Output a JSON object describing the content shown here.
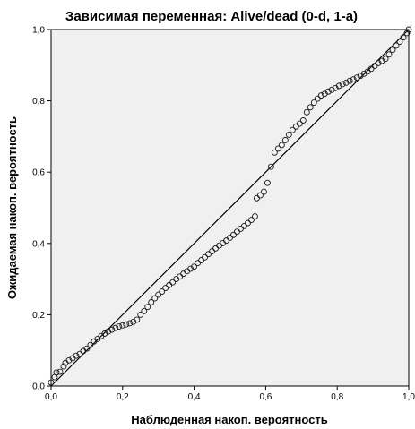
{
  "chart_data": {
    "type": "scatter",
    "title": "Зависимая переменная: Alive/dead (0-d, 1-a)",
    "xlabel": "Наблюденная накоп. вероятность",
    "ylabel": "Ожидаемая накоп. вероятность",
    "xlim": [
      0,
      1
    ],
    "ylim": [
      0,
      1
    ],
    "x_ticks": [
      "0,0",
      "0,2",
      "0,4",
      "0,6",
      "0,8",
      "1,0"
    ],
    "y_ticks": [
      "0,0",
      "0,2",
      "0,4",
      "0,6",
      "0,8",
      "1,0"
    ],
    "grid": false,
    "reference_line": {
      "from": [
        0,
        0
      ],
      "to": [
        1,
        1
      ]
    },
    "plot_background": "#f0f0f0",
    "marker": "open-circle",
    "marker_color": "#1a1a1a",
    "series": [
      {
        "points": [
          [
            0.0,
            0.01
          ],
          [
            0.01,
            0.025
          ],
          [
            0.015,
            0.038
          ],
          [
            0.025,
            0.04
          ],
          [
            0.035,
            0.055
          ],
          [
            0.04,
            0.065
          ],
          [
            0.05,
            0.072
          ],
          [
            0.06,
            0.078
          ],
          [
            0.07,
            0.085
          ],
          [
            0.08,
            0.09
          ],
          [
            0.09,
            0.098
          ],
          [
            0.1,
            0.105
          ],
          [
            0.11,
            0.115
          ],
          [
            0.12,
            0.125
          ],
          [
            0.13,
            0.132
          ],
          [
            0.14,
            0.14
          ],
          [
            0.15,
            0.147
          ],
          [
            0.16,
            0.153
          ],
          [
            0.17,
            0.158
          ],
          [
            0.18,
            0.163
          ],
          [
            0.19,
            0.167
          ],
          [
            0.2,
            0.17
          ],
          [
            0.21,
            0.173
          ],
          [
            0.22,
            0.176
          ],
          [
            0.23,
            0.18
          ],
          [
            0.24,
            0.186
          ],
          [
            0.25,
            0.2
          ],
          [
            0.26,
            0.21
          ],
          [
            0.27,
            0.222
          ],
          [
            0.28,
            0.235
          ],
          [
            0.29,
            0.246
          ],
          [
            0.3,
            0.256
          ],
          [
            0.31,
            0.265
          ],
          [
            0.32,
            0.275
          ],
          [
            0.33,
            0.283
          ],
          [
            0.34,
            0.291
          ],
          [
            0.35,
            0.3
          ],
          [
            0.36,
            0.307
          ],
          [
            0.37,
            0.315
          ],
          [
            0.38,
            0.322
          ],
          [
            0.39,
            0.329
          ],
          [
            0.4,
            0.335
          ],
          [
            0.41,
            0.345
          ],
          [
            0.42,
            0.353
          ],
          [
            0.43,
            0.361
          ],
          [
            0.44,
            0.37
          ],
          [
            0.45,
            0.378
          ],
          [
            0.46,
            0.386
          ],
          [
            0.47,
            0.394
          ],
          [
            0.48,
            0.401
          ],
          [
            0.49,
            0.408
          ],
          [
            0.5,
            0.416
          ],
          [
            0.51,
            0.424
          ],
          [
            0.52,
            0.433
          ],
          [
            0.53,
            0.441
          ],
          [
            0.54,
            0.449
          ],
          [
            0.55,
            0.457
          ],
          [
            0.56,
            0.466
          ],
          [
            0.57,
            0.476
          ],
          [
            0.575,
            0.527
          ],
          [
            0.585,
            0.535
          ],
          [
            0.595,
            0.545
          ],
          [
            0.605,
            0.57
          ],
          [
            0.615,
            0.615
          ],
          [
            0.625,
            0.655
          ],
          [
            0.635,
            0.666
          ],
          [
            0.645,
            0.676
          ],
          [
            0.655,
            0.69
          ],
          [
            0.665,
            0.705
          ],
          [
            0.675,
            0.718
          ],
          [
            0.685,
            0.728
          ],
          [
            0.695,
            0.736
          ],
          [
            0.705,
            0.745
          ],
          [
            0.715,
            0.768
          ],
          [
            0.725,
            0.782
          ],
          [
            0.735,
            0.795
          ],
          [
            0.745,
            0.806
          ],
          [
            0.755,
            0.815
          ],
          [
            0.765,
            0.82
          ],
          [
            0.775,
            0.826
          ],
          [
            0.785,
            0.831
          ],
          [
            0.795,
            0.836
          ],
          [
            0.805,
            0.842
          ],
          [
            0.815,
            0.847
          ],
          [
            0.825,
            0.851
          ],
          [
            0.835,
            0.856
          ],
          [
            0.845,
            0.86
          ],
          [
            0.855,
            0.865
          ],
          [
            0.865,
            0.87
          ],
          [
            0.875,
            0.876
          ],
          [
            0.885,
            0.882
          ],
          [
            0.895,
            0.89
          ],
          [
            0.905,
            0.898
          ],
          [
            0.915,
            0.906
          ],
          [
            0.925,
            0.912
          ],
          [
            0.935,
            0.918
          ],
          [
            0.945,
            0.93
          ],
          [
            0.955,
            0.943
          ],
          [
            0.965,
            0.955
          ],
          [
            0.975,
            0.966
          ],
          [
            0.985,
            0.978
          ],
          [
            0.995,
            0.99
          ],
          [
            1.0,
            1.0
          ]
        ]
      }
    ]
  }
}
